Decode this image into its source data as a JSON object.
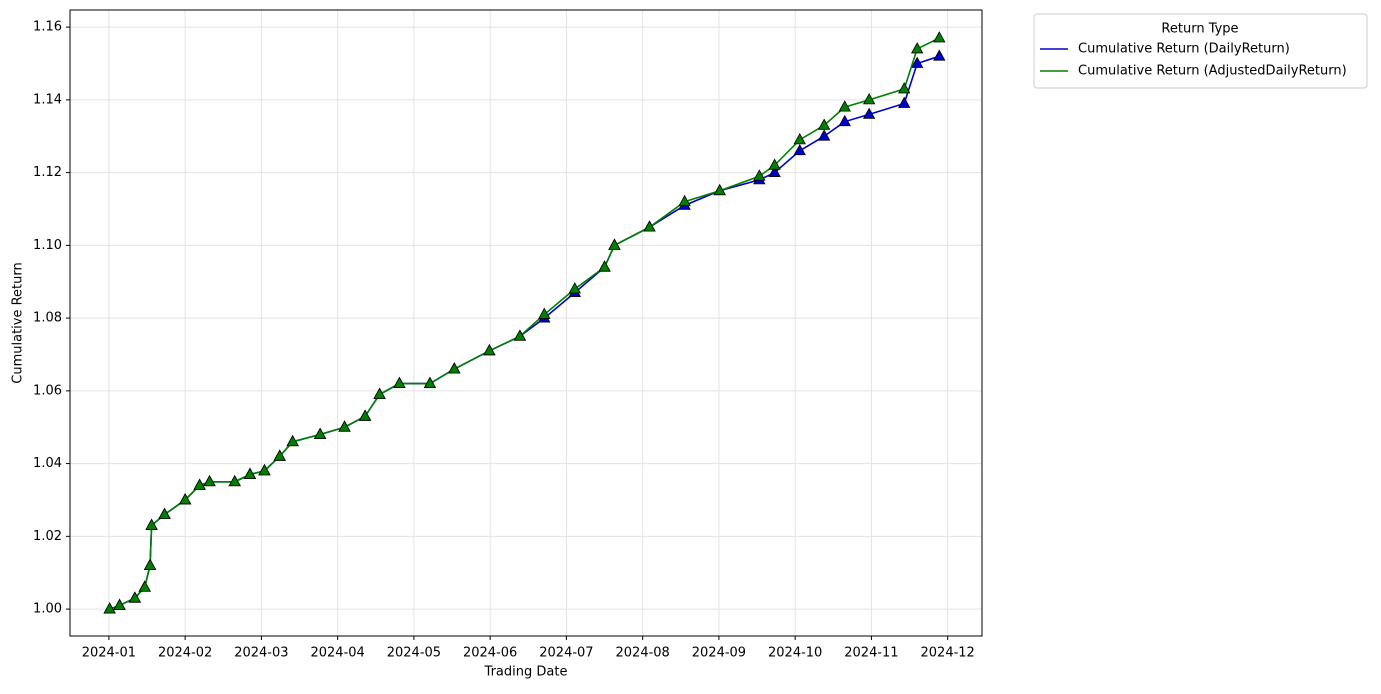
{
  "chart_data": {
    "type": "line",
    "x_label": "Trading Date",
    "y_label": "Cumulative Return",
    "legend_title": "Return Type",
    "legend_position": "outside upper right",
    "grid": true,
    "xlim": [
      0.49,
      12.45
    ],
    "xticks": [
      {
        "value": 1,
        "label": "2024-01"
      },
      {
        "value": 2,
        "label": "2024-02"
      },
      {
        "value": 3,
        "label": "2024-03"
      },
      {
        "value": 4,
        "label": "2024-04"
      },
      {
        "value": 5,
        "label": "2024-05"
      },
      {
        "value": 6,
        "label": "2024-06"
      },
      {
        "value": 7,
        "label": "2024-07"
      },
      {
        "value": 8,
        "label": "2024-08"
      },
      {
        "value": 9,
        "label": "2024-09"
      },
      {
        "value": 10,
        "label": "2024-10"
      },
      {
        "value": 11,
        "label": "2024-11"
      },
      {
        "value": 12,
        "label": "2024-12"
      }
    ],
    "ylim": [
      0.9926,
      1.1647
    ],
    "yticks": [
      {
        "value": 1.0,
        "label": "1.00"
      },
      {
        "value": 1.02,
        "label": "1.02"
      },
      {
        "value": 1.04,
        "label": "1.04"
      },
      {
        "value": 1.06,
        "label": "1.06"
      },
      {
        "value": 1.08,
        "label": "1.08"
      },
      {
        "value": 1.1,
        "label": "1.10"
      },
      {
        "value": 1.12,
        "label": "1.12"
      },
      {
        "value": 1.14,
        "label": "1.14"
      },
      {
        "value": 1.16,
        "label": "1.16"
      }
    ],
    "x": [
      1.01,
      1.14,
      1.34,
      1.47,
      1.54,
      1.56,
      1.73,
      2.0,
      2.19,
      2.32,
      2.65,
      2.85,
      3.04,
      3.24,
      3.41,
      3.77,
      4.09,
      4.36,
      4.55,
      4.81,
      5.21,
      5.53,
      5.99,
      6.39,
      6.71,
      7.11,
      7.5,
      7.63,
      8.09,
      8.55,
      9.01,
      9.53,
      9.73,
      10.06,
      10.38,
      10.65,
      10.97,
      11.43,
      11.6,
      11.89
    ],
    "series": [
      {
        "name": "Cumulative Return (DailyReturn)",
        "color": "#0000cc",
        "values": [
          1.0,
          1.001,
          1.003,
          1.006,
          1.012,
          1.023,
          1.026,
          1.03,
          1.034,
          1.035,
          1.035,
          1.037,
          1.038,
          1.042,
          1.046,
          1.048,
          1.05,
          1.053,
          1.059,
          1.062,
          1.062,
          1.066,
          1.071,
          1.075,
          1.08,
          1.087,
          1.094,
          1.1,
          1.105,
          1.111,
          1.115,
          1.118,
          1.12,
          1.126,
          1.13,
          1.134,
          1.136,
          1.139,
          1.15,
          1.152
        ]
      },
      {
        "name": "Cumulative Return (AdjustedDailyReturn)",
        "color": "#008000",
        "values": [
          1.0,
          1.001,
          1.003,
          1.006,
          1.012,
          1.023,
          1.026,
          1.03,
          1.034,
          1.035,
          1.035,
          1.037,
          1.038,
          1.042,
          1.046,
          1.048,
          1.05,
          1.053,
          1.059,
          1.062,
          1.062,
          1.066,
          1.071,
          1.075,
          1.081,
          1.088,
          1.094,
          1.1,
          1.105,
          1.112,
          1.115,
          1.119,
          1.122,
          1.129,
          1.133,
          1.138,
          1.14,
          1.143,
          1.154,
          1.157
        ]
      }
    ]
  }
}
